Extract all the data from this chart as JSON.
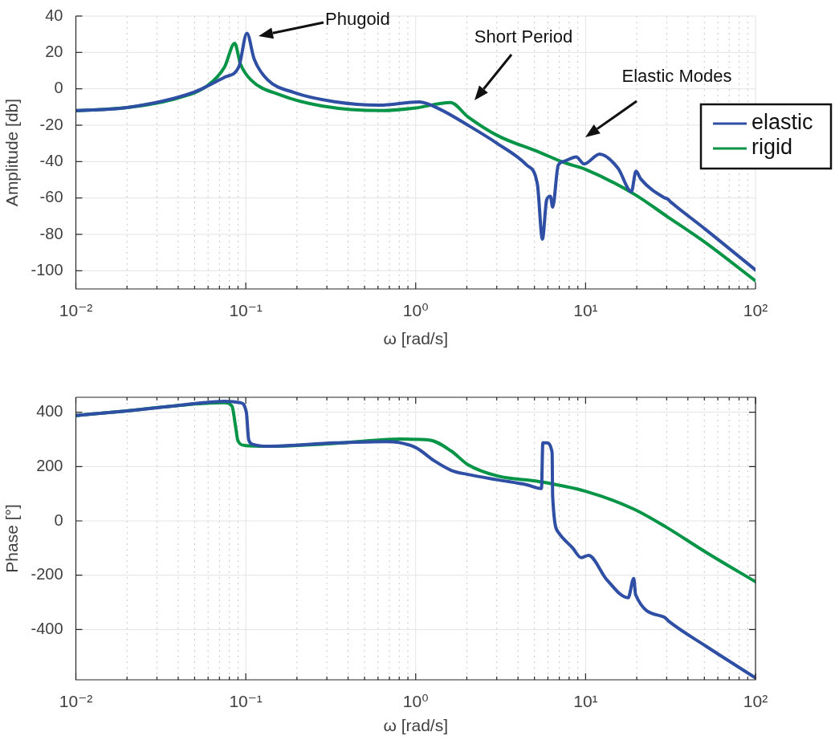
{
  "chart_data": [
    {
      "type": "line",
      "ylabel": "Amplitude [db]",
      "xlabel": "ω [rad/s]",
      "log": "x",
      "xlim": [
        0.01,
        100
      ],
      "ylim": [
        -110,
        40
      ],
      "xticks": [
        {
          "value": 0.01,
          "label": "10⁻²"
        },
        {
          "value": 0.02,
          "label": null
        },
        {
          "value": 0.03,
          "label": null
        },
        {
          "value": 0.04,
          "label": null
        },
        {
          "value": 0.05,
          "label": null
        },
        {
          "value": 0.06,
          "label": null
        },
        {
          "value": 0.07,
          "label": null
        },
        {
          "value": 0.08,
          "label": null
        },
        {
          "value": 0.09,
          "label": null
        },
        {
          "value": 0.1,
          "label": "10⁻¹"
        },
        {
          "value": 0.2,
          "label": null
        },
        {
          "value": 0.3,
          "label": null
        },
        {
          "value": 0.4,
          "label": null
        },
        {
          "value": 0.5,
          "label": null
        },
        {
          "value": 0.6,
          "label": null
        },
        {
          "value": 0.7,
          "label": null
        },
        {
          "value": 0.8,
          "label": null
        },
        {
          "value": 0.9,
          "label": null
        },
        {
          "value": 1,
          "label": "10⁰"
        },
        {
          "value": 2,
          "label": null
        },
        {
          "value": 3,
          "label": null
        },
        {
          "value": 4,
          "label": null
        },
        {
          "value": 5,
          "label": null
        },
        {
          "value": 6,
          "label": null
        },
        {
          "value": 7,
          "label": null
        },
        {
          "value": 8,
          "label": null
        },
        {
          "value": 9,
          "label": null
        },
        {
          "value": 10,
          "label": "10¹"
        },
        {
          "value": 20,
          "label": null
        },
        {
          "value": 30,
          "label": null
        },
        {
          "value": 40,
          "label": null
        },
        {
          "value": 50,
          "label": null
        },
        {
          "value": 60,
          "label": null
        },
        {
          "value": 70,
          "label": null
        },
        {
          "value": 80,
          "label": null
        },
        {
          "value": 90,
          "label": null
        },
        {
          "value": 100,
          "label": "10²"
        }
      ],
      "yticks": [
        -100,
        -80,
        -60,
        -40,
        -20,
        0,
        20,
        40
      ],
      "grid": true,
      "legend": "right",
      "series": [
        {
          "name": "elastic",
          "color": "#2e4fa3",
          "x": [
            0.01,
            0.02,
            0.0487,
            0.075,
            0.091,
            0.1016,
            0.112,
            0.134,
            0.193,
            0.333,
            0.61,
            1.05,
            1.38,
            2.03,
            3.05,
            4.5,
            5.2,
            5.57,
            5.9,
            6.2,
            6.4,
            6.9,
            7.5,
            8.8,
            9.8,
            12.1,
            15.5,
            18.6,
            19.8,
            21.1,
            29,
            30.3,
            31.9,
            51,
            100
          ],
          "values": [
            -12,
            -10.3,
            -2.1,
            6.4,
            12.1,
            30.5,
            16.4,
            5.1,
            -2.1,
            -7.1,
            -9,
            -7.2,
            -11.1,
            -20,
            -30.3,
            -41.9,
            -52.3,
            -82.6,
            -61,
            -59,
            -65,
            -42,
            -39.8,
            -37.4,
            -41.3,
            -35.9,
            -43.6,
            -56.4,
            -45.3,
            -49.5,
            -59.8,
            -60.5,
            -62.4,
            -77.4,
            -99.6
          ]
        },
        {
          "name": "rigid",
          "color": "#069447",
          "x": [
            0.01,
            0.02,
            0.04,
            0.06,
            0.075,
            0.086,
            0.093,
            0.107,
            0.16,
            0.28,
            0.64,
            1.0,
            1.6,
            2.03,
            3.06,
            5.3,
            7.5,
            10,
            19.4,
            30,
            51,
            100
          ],
          "values": [
            -12,
            -10.3,
            -5,
            2,
            12,
            25,
            13.7,
            5,
            -3.4,
            -9.4,
            -12,
            -10.5,
            -7.5,
            -15.4,
            -25.9,
            -34.7,
            -40.6,
            -44.3,
            -58,
            -70,
            -84.7,
            -105.6
          ]
        }
      ],
      "annotations": [
        "Phugoid",
        "Short Period",
        "Elastic Modes"
      ]
    },
    {
      "type": "line",
      "ylabel": "Phase [°]",
      "xlabel": "ω [rad/s]",
      "log": "x",
      "xlim": [
        0.01,
        100
      ],
      "ylim": [
        -585,
        455
      ],
      "xticks": [
        {
          "value": 0.01,
          "label": "10⁻²"
        },
        {
          "value": 0.02,
          "label": null
        },
        {
          "value": 0.03,
          "label": null
        },
        {
          "value": 0.04,
          "label": null
        },
        {
          "value": 0.05,
          "label": null
        },
        {
          "value": 0.06,
          "label": null
        },
        {
          "value": 0.07,
          "label": null
        },
        {
          "value": 0.08,
          "label": null
        },
        {
          "value": 0.09,
          "label": null
        },
        {
          "value": 0.1,
          "label": "10⁻¹"
        },
        {
          "value": 0.2,
          "label": null
        },
        {
          "value": 0.3,
          "label": null
        },
        {
          "value": 0.4,
          "label": null
        },
        {
          "value": 0.5,
          "label": null
        },
        {
          "value": 0.6,
          "label": null
        },
        {
          "value": 0.7,
          "label": null
        },
        {
          "value": 0.8,
          "label": null
        },
        {
          "value": 0.9,
          "label": null
        },
        {
          "value": 1,
          "label": "10⁰"
        },
        {
          "value": 2,
          "label": null
        },
        {
          "value": 3,
          "label": null
        },
        {
          "value": 4,
          "label": null
        },
        {
          "value": 5,
          "label": null
        },
        {
          "value": 6,
          "label": null
        },
        {
          "value": 7,
          "label": null
        },
        {
          "value": 8,
          "label": null
        },
        {
          "value": 9,
          "label": null
        },
        {
          "value": 10,
          "label": "10¹"
        },
        {
          "value": 20,
          "label": null
        },
        {
          "value": 30,
          "label": null
        },
        {
          "value": 40,
          "label": null
        },
        {
          "value": 50,
          "label": null
        },
        {
          "value": 60,
          "label": null
        },
        {
          "value": 70,
          "label": null
        },
        {
          "value": 80,
          "label": null
        },
        {
          "value": 90,
          "label": null
        },
        {
          "value": 100,
          "label": "10²"
        }
      ],
      "yticks": [
        -400,
        -200,
        0,
        200,
        400
      ],
      "grid": true,
      "series": [
        {
          "color": "#2e4fa3",
          "x": [
            0.01,
            0.02,
            0.04,
            0.075,
            0.093,
            0.1008,
            0.104,
            0.11,
            0.134,
            0.333,
            0.68,
            1.0,
            1.28,
            1.62,
            2.03,
            3.05,
            4.5,
            5.5,
            5.6,
            5.9,
            6.35,
            6.4,
            6.95,
            8.4,
            9.4,
            10.4,
            13.3,
            17.8,
            19.2,
            19.7,
            29,
            30.8,
            51,
            100
          ],
          "values": [
            388,
            405,
            425,
            440,
            435,
            399,
            299,
            282,
            275,
            287,
            292,
            270,
            222,
            186,
            171,
            151,
            133,
            119,
            287,
            287,
            252,
            89,
            -44,
            -100,
            -135,
            -127,
            -216,
            -283,
            -212,
            -272,
            -354,
            -369,
            -461,
            -578
          ]
        },
        {
          "color": "#069447",
          "x": [
            0.01,
            0.02,
            0.04,
            0.075,
            0.083,
            0.087,
            0.09,
            0.098,
            0.134,
            0.333,
            0.82,
            1.2,
            1.62,
            2.03,
            3.05,
            5.3,
            10,
            19.3,
            30,
            51,
            100
          ],
          "values": [
            388,
            405,
            425,
            435,
            422,
            349,
            294,
            278,
            275,
            285,
            301,
            298,
            257,
            207,
            165,
            145,
            109,
            43,
            -24,
            -115,
            -224
          ]
        }
      ]
    }
  ]
}
